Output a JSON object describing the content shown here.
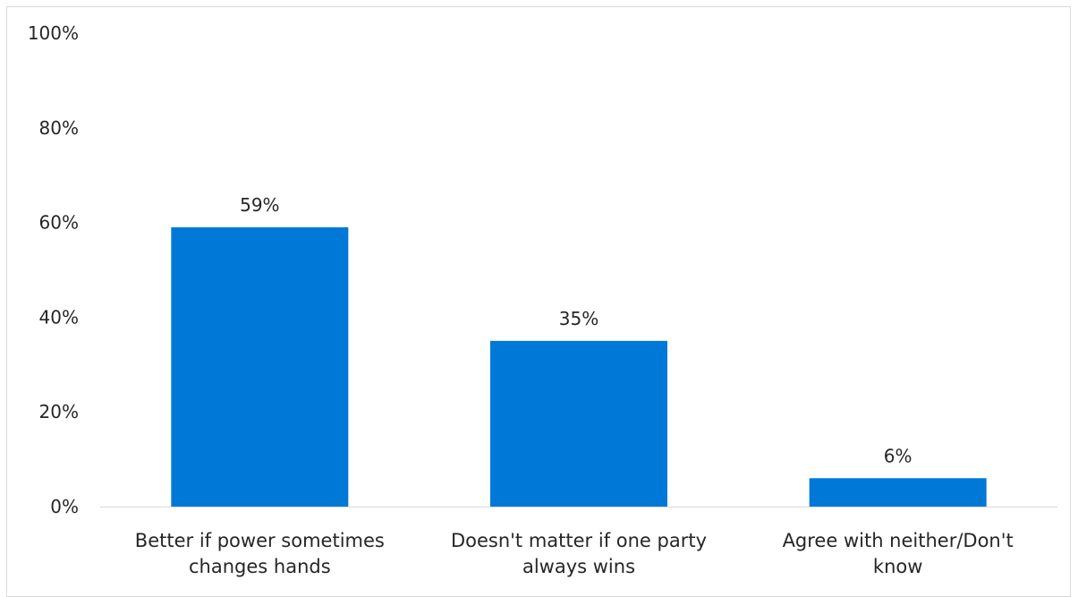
{
  "chart_data": {
    "type": "bar",
    "categories": [
      [
        "Better if power sometimes",
        "changes hands"
      ],
      [
        "Doesn't matter if one party",
        "always wins"
      ],
      [
        "Agree with neither/Don't",
        "know"
      ]
    ],
    "values": [
      59,
      35,
      6
    ],
    "data_labels": [
      "59%",
      "35%",
      "6%"
    ],
    "y_ticks": [
      0,
      20,
      40,
      60,
      80,
      100
    ],
    "y_tick_labels": [
      "0%",
      "20%",
      "40%",
      "60%",
      "80%",
      "100%"
    ],
    "ylim": [
      0,
      100
    ],
    "grid": false,
    "bar_color": "#0078d7",
    "axis_color": "#d9d9d9",
    "text_color": "#262626"
  }
}
